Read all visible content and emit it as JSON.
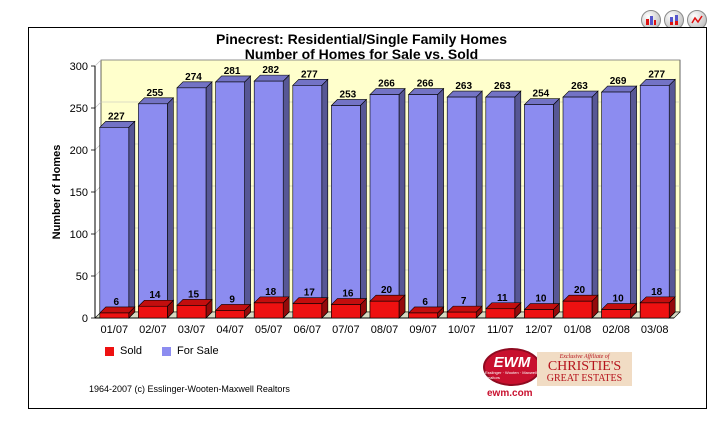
{
  "toolbar": {
    "buttons": [
      "bar-chart-icon",
      "stacked-bar-icon",
      "line-chart-icon"
    ]
  },
  "chart_data": {
    "type": "bar",
    "title": "Pinecrest: Residential/Single Family Homes",
    "subtitle": "Number of Homes for Sale vs. Sold",
    "ylabel": "Number of Homes",
    "xlabel": "",
    "ylim": [
      0,
      300
    ],
    "yticks": [
      "0",
      "50",
      "100",
      "150",
      "200",
      "250",
      "300"
    ],
    "categories": [
      "01/07",
      "02/07",
      "03/07",
      "04/07",
      "05/07",
      "06/07",
      "07/07",
      "08/07",
      "09/07",
      "10/07",
      "11/07",
      "12/07",
      "01/08",
      "02/08",
      "03/08"
    ],
    "series": [
      {
        "name": "Sold",
        "color": "#ee1111",
        "values": [
          6,
          14,
          15,
          9,
          18,
          17,
          16,
          20,
          6,
          7,
          11,
          10,
          20,
          10,
          18
        ]
      },
      {
        "name": "For Sale",
        "color": "#8c8cf0",
        "values": [
          227,
          255,
          274,
          281,
          282,
          277,
          253,
          266,
          266,
          263,
          263,
          254,
          263,
          269,
          277
        ]
      }
    ],
    "grid": true,
    "legend": "bottom-left",
    "plot_background": "#ffffcc"
  },
  "footer": {
    "copyright": "1964-2007 (c) Esslinger-Wooten-Maxwell Realtors",
    "ewm_logo": "EWM",
    "ewm_logo_sub": "Esslinger · Wooten · Maxwell Realtors",
    "ewm_url": "ewm.com",
    "affiliate_line": "Exclusive Affiliate of",
    "christies": "CHRISTIE'S",
    "great_estates": "GREAT ESTATES"
  }
}
